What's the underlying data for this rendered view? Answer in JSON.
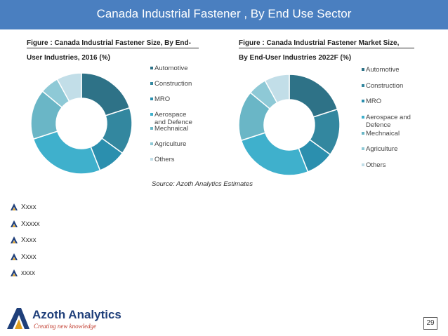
{
  "header": {
    "title": "Canada  Industrial Fastener , By End Use Sector"
  },
  "chart_data": [
    {
      "type": "pie",
      "subtype": "donut",
      "title_line1": "Figure : Canada Industrial Fastener Size, By End-",
      "title_line2": "User Industries, 2016 (%)",
      "categories": [
        "Automotive",
        "Construction",
        "MRO",
        "Aerospace and Defence",
        "Mechnaical",
        "Agriculture",
        "Others"
      ],
      "legend_lines": [
        [
          "Automotive"
        ],
        [
          "Construction"
        ],
        [
          "MRO"
        ],
        [
          "Aerospace",
          "and Defence"
        ],
        [
          "Mechnaical"
        ],
        [
          "Agriculture"
        ],
        [
          "Others"
        ]
      ],
      "values": [
        20,
        15,
        9,
        26,
        16,
        6,
        8
      ],
      "legend_position": "right",
      "colors": [
        "#2e7287",
        "#33879f",
        "#2b8fae",
        "#3fb0cc",
        "#6ab6c6",
        "#8ec9d6",
        "#c2dee8"
      ]
    },
    {
      "type": "pie",
      "subtype": "donut",
      "title_line1": "Figure  :  Canada  Industrial  Fastener  Market  Size,",
      "title_line2": "By End-User Industries 2022F (%)",
      "categories": [
        "Automotive",
        "Construction",
        "MRO",
        "Aerospace and Defence",
        "Mechnaical",
        "Agriculture",
        "Others"
      ],
      "legend_lines": [
        [
          "Automotive"
        ],
        [
          "Construction"
        ],
        [
          "MRO"
        ],
        [
          "Aerospace and",
          "Defence"
        ],
        [
          "Mechnaical"
        ],
        [
          "Agriculture"
        ],
        [
          "Others"
        ]
      ],
      "values": [
        20,
        15,
        9,
        26,
        16,
        6,
        8
      ],
      "legend_position": "right",
      "colors": [
        "#2e7287",
        "#33879f",
        "#2b8fae",
        "#3fb0cc",
        "#6ab6c6",
        "#8ec9d6",
        "#c2dee8"
      ]
    }
  ],
  "source": "Source: Azoth Analytics Estimates",
  "bullets": [
    "Xxxx",
    "Xxxxx",
    "Xxxx",
    "Xxxx",
    "xxxx"
  ],
  "footer": {
    "logo_name": "Azoth Analytics",
    "logo_tagline": "Creating new knowledge",
    "page_number": "29"
  }
}
